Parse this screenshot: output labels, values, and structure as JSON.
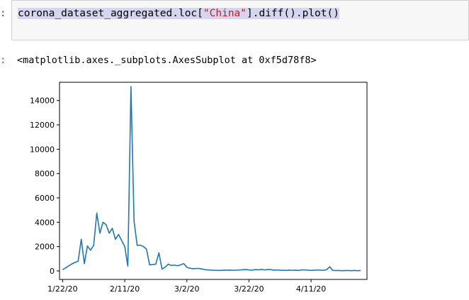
{
  "input_prompt": ":",
  "output_prompt": ":",
  "code": {
    "prefix": "corona_dataset_aggregated.loc[",
    "string": "\"China\"",
    "suffix": "].diff().plot()"
  },
  "output_repr": "<matplotlib.axes._subplots.AxesSubplot at 0xf5d78f8>",
  "colors": {
    "line": "#1f77b4",
    "selection": "#d7d4f0",
    "string": "#ba2121"
  },
  "chart_data": {
    "type": "line",
    "title": "",
    "xlabel": "",
    "ylabel": "",
    "grid": false,
    "legend": "none",
    "ylim": [
      -700,
      15500
    ],
    "xlim": [
      -1,
      98
    ],
    "x_tick_labels": [
      "1/22/20",
      "2/11/20",
      "3/2/20",
      "3/22/20",
      "4/11/20"
    ],
    "x_tick_positions": [
      0,
      20,
      40,
      60,
      80
    ],
    "y_ticks": [
      0,
      2000,
      4000,
      6000,
      8000,
      10000,
      12000,
      14000
    ],
    "series": [
      {
        "values": [
          100,
          260,
          420,
          580,
          700,
          800,
          2600,
          600,
          2050,
          1700,
          2100,
          4750,
          3100,
          4000,
          3800,
          3100,
          3500,
          2600,
          3000,
          2500,
          2000,
          390,
          15150,
          4100,
          2100,
          2120,
          2000,
          1800,
          500,
          520,
          560,
          1490,
          150,
          300,
          550,
          450,
          480,
          420,
          500,
          600,
          300,
          220,
          180,
          200,
          200,
          150,
          100,
          80,
          60,
          50,
          40,
          40,
          60,
          60,
          70,
          50,
          60,
          80,
          100,
          120,
          80,
          60,
          110,
          90,
          130,
          80,
          110,
          110,
          60,
          80,
          60,
          50,
          40,
          70,
          50,
          60,
          40,
          80,
          80,
          60,
          40,
          60,
          80,
          60,
          50,
          100,
          340,
          40,
          30,
          30,
          20,
          30,
          30,
          20,
          40,
          20,
          30
        ]
      }
    ]
  }
}
